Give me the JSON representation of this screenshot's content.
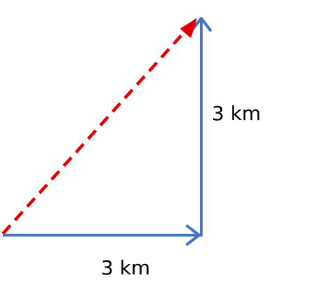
{
  "diagram": {
    "vertical_label": "3 km",
    "horizontal_label": "3 km",
    "colors": {
      "component_vectors": "#4472C4",
      "resultant_vector": "#E00000",
      "text": "#000000"
    },
    "components": [
      {
        "name": "horizontal-displacement",
        "magnitude_km": 3,
        "direction": "east"
      },
      {
        "name": "vertical-displacement",
        "magnitude_km": 3,
        "direction": "north"
      }
    ],
    "resultant": {
      "style": "dashed",
      "direction": "northeast"
    }
  }
}
